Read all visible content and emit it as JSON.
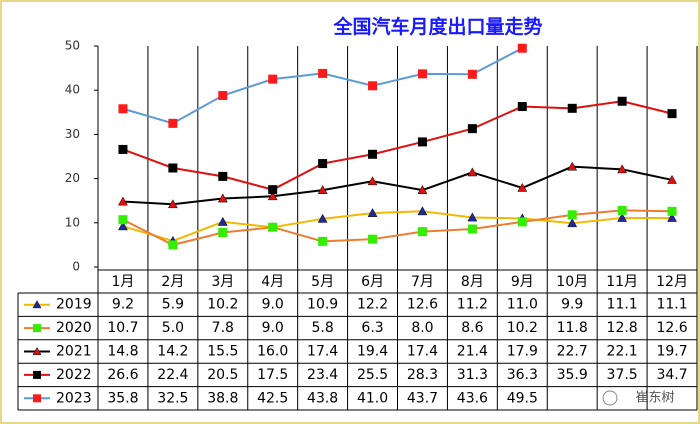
{
  "chart_data": {
    "type": "line",
    "title": "全国汽车月度出口量走势",
    "categories": [
      "1月",
      "2月",
      "3月",
      "4月",
      "5月",
      "6月",
      "7月",
      "8月",
      "9月",
      "10月",
      "11月",
      "12月"
    ],
    "ylim": [
      0,
      50
    ],
    "yticks": [
      0,
      10,
      20,
      30,
      40,
      50
    ],
    "watermark": "崔东树",
    "series": [
      {
        "name": "2019",
        "color": "#f5b800",
        "marker": "triangle",
        "marker_color": "#1f2a9c",
        "values": [
          9.2,
          5.9,
          10.2,
          9.0,
          10.9,
          12.2,
          12.6,
          11.2,
          11.0,
          9.9,
          11.1,
          11.1
        ],
        "value_labels": [
          "9.2",
          "5.9",
          "10.2",
          "9.0",
          "10.9",
          "12.2",
          "12.6",
          "11.2",
          "11.0",
          "9.9",
          "11.1",
          "11.1"
        ]
      },
      {
        "name": "2020",
        "color": "#ed7d31",
        "marker": "square",
        "marker_color": "#33ee00",
        "values": [
          10.7,
          5.0,
          7.8,
          9.0,
          5.8,
          6.3,
          8.0,
          8.6,
          10.2,
          11.8,
          12.8,
          12.6
        ],
        "value_labels": [
          "10.7",
          "5.0",
          "7.8",
          "9.0",
          "5.8",
          "6.3",
          "8.0",
          "8.6",
          "10.2",
          "11.8",
          "12.8",
          "12.6"
        ]
      },
      {
        "name": "2021",
        "color": "#000000",
        "marker": "triangle",
        "marker_color": "#e01010",
        "values": [
          14.8,
          14.2,
          15.5,
          16.0,
          17.4,
          19.4,
          17.4,
          21.4,
          17.9,
          22.7,
          22.1,
          19.7
        ],
        "value_labels": [
          "14.8",
          "14.2",
          "15.5",
          "16.0",
          "17.4",
          "19.4",
          "17.4",
          "21.4",
          "17.9",
          "22.7",
          "22.1",
          "19.7"
        ]
      },
      {
        "name": "2022",
        "color": "#e01010",
        "marker": "square",
        "marker_color": "#000000",
        "values": [
          26.6,
          22.4,
          20.5,
          17.5,
          23.4,
          25.5,
          28.3,
          31.3,
          36.3,
          35.9,
          37.5,
          34.7
        ],
        "value_labels": [
          "26.6",
          "22.4",
          "20.5",
          "17.5",
          "23.4",
          "25.5",
          "28.3",
          "31.3",
          "36.3",
          "35.9",
          "37.5",
          "34.7"
        ]
      },
      {
        "name": "2023",
        "color": "#5b9bd5",
        "marker": "square",
        "marker_color": "#ff1a1a",
        "values": [
          35.8,
          32.5,
          38.8,
          42.5,
          43.8,
          41.0,
          43.7,
          43.6,
          49.5,
          null,
          null,
          null
        ],
        "value_labels": [
          "35.8",
          "32.5",
          "38.8",
          "42.5",
          "43.8",
          "41.0",
          "43.7",
          "43.6",
          "49.5",
          null,
          null,
          null
        ]
      }
    ]
  }
}
